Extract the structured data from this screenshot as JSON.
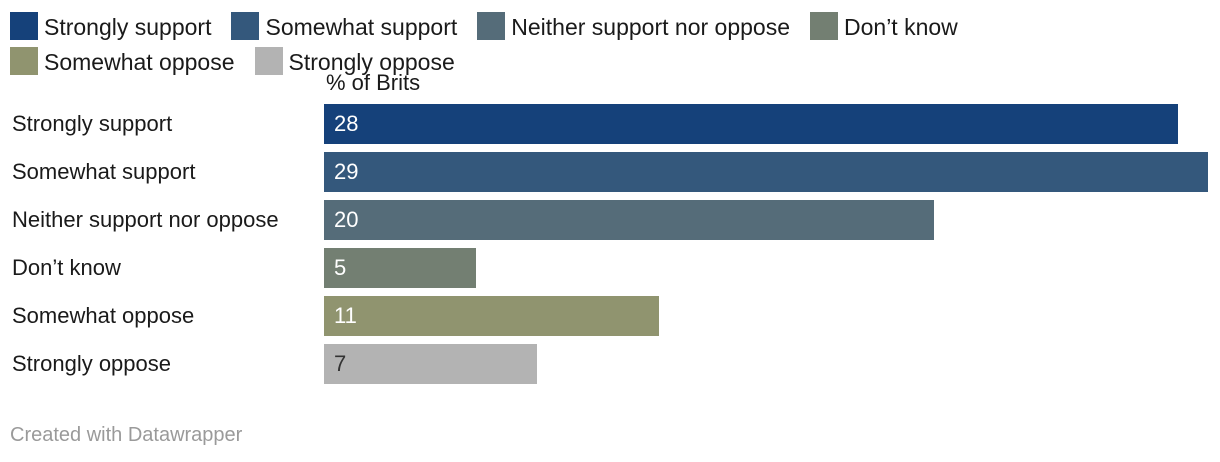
{
  "chart_data": {
    "type": "bar",
    "orientation": "horizontal",
    "axis_label": "% of Brits",
    "categories": [
      "Strongly support",
      "Somewhat support",
      "Neither support nor oppose",
      "Don’t know",
      "Somewhat oppose",
      "Strongly oppose"
    ],
    "values": [
      28,
      29,
      20,
      5,
      11,
      7
    ],
    "value_labels": [
      "28",
      "29",
      "20",
      "5",
      "11",
      "7"
    ],
    "colors": [
      "#15417a",
      "#34587c",
      "#556c79",
      "#737f72",
      "#90946f",
      "#b3b3b3"
    ],
    "label_colors": [
      "#ffffff",
      "#ffffff",
      "#ffffff",
      "#ffffff",
      "#ffffff",
      "#333333"
    ],
    "legend": [
      "Strongly support",
      "Somewhat support",
      "Neither support nor oppose",
      "Don’t know",
      "Somewhat oppose",
      "Strongly oppose"
    ],
    "legend_placement": "top",
    "xlim": [
      0,
      29
    ],
    "grid": false
  },
  "footer": {
    "credit": "Created with Datawrapper"
  }
}
